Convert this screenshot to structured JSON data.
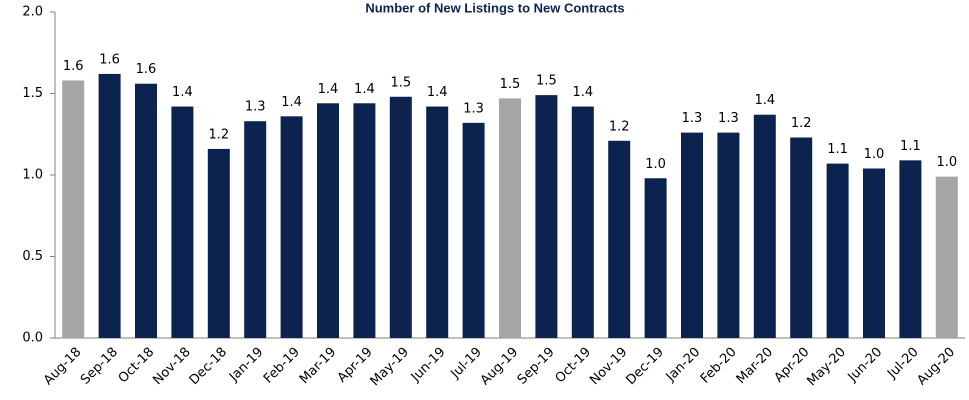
{
  "chart_data": {
    "type": "bar",
    "title": "Number of New Listings to New Contracts",
    "categories": [
      "Aug-18",
      "Sep-18",
      "Oct-18",
      "Nov-18",
      "Dec-18",
      "Jan-19",
      "Feb-19",
      "Mar-19",
      "Apr-19",
      "May-19",
      "Jun-19",
      "Jul-19",
      "Aug-19",
      "Sep-19",
      "Oct-19",
      "Nov-19",
      "Dec-19",
      "Jan-20",
      "Feb-20",
      "Mar-20",
      "Apr-20",
      "May-20",
      "Jun-20",
      "Jul-20",
      "Aug-20"
    ],
    "values": [
      1.58,
      1.62,
      1.56,
      1.42,
      1.16,
      1.33,
      1.36,
      1.44,
      1.44,
      1.48,
      1.42,
      1.32,
      1.47,
      1.49,
      1.42,
      1.21,
      0.98,
      1.26,
      1.26,
      1.37,
      1.23,
      1.07,
      1.04,
      1.09,
      0.99
    ],
    "value_labels": [
      "1.6",
      "1.6",
      "1.6",
      "1.4",
      "1.2",
      "1.3",
      "1.4",
      "1.4",
      "1.4",
      "1.5",
      "1.4",
      "1.3",
      "1.5",
      "1.5",
      "1.4",
      "1.2",
      "1.0",
      "1.3",
      "1.3",
      "1.4",
      "1.2",
      "1.1",
      "1.0",
      "1.1",
      "1.0"
    ],
    "colors": [
      "#a6a6a6",
      "#0c2350",
      "#0c2350",
      "#0c2350",
      "#0c2350",
      "#0c2350",
      "#0c2350",
      "#0c2350",
      "#0c2350",
      "#0c2350",
      "#0c2350",
      "#0c2350",
      "#a6a6a6",
      "#0c2350",
      "#0c2350",
      "#0c2350",
      "#0c2350",
      "#0c2350",
      "#0c2350",
      "#0c2350",
      "#0c2350",
      "#0c2350",
      "#0c2350",
      "#0c2350",
      "#a6a6a6"
    ],
    "ylim": [
      0,
      2
    ],
    "yticks": [
      {
        "value": 0,
        "label": "0.0"
      },
      {
        "value": 0.5,
        "label": "0.5"
      },
      {
        "value": 1,
        "label": "1.0"
      },
      {
        "value": 1.5,
        "label": "1.5"
      },
      {
        "value": 2,
        "label": "2.0"
      }
    ],
    "grid": false
  }
}
